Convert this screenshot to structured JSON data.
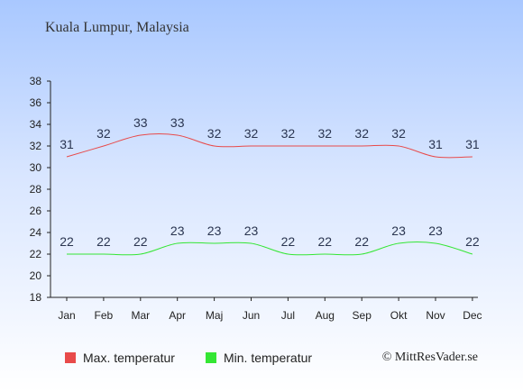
{
  "header": {
    "title": "Kuala Lumpur, Malaysia"
  },
  "credit": "© MittResVader.se",
  "colors": {
    "max": "#e84a4a",
    "min": "#34e634",
    "axis": "#222222"
  },
  "chart_data": {
    "type": "line",
    "title": "Kuala Lumpur, Malaysia",
    "categories": [
      "Jan",
      "Feb",
      "Mar",
      "Apr",
      "Maj",
      "Jun",
      "Jul",
      "Aug",
      "Sep",
      "Okt",
      "Nov",
      "Dec"
    ],
    "ylim": [
      18,
      38
    ],
    "yticks": [
      18,
      20,
      22,
      24,
      26,
      28,
      30,
      32,
      34,
      36,
      38
    ],
    "grid": false,
    "legend_position": "bottom",
    "series": [
      {
        "name": "Max. temperatur",
        "values": [
          31,
          32,
          33,
          33,
          32,
          32,
          32,
          32,
          32,
          32,
          31,
          31
        ]
      },
      {
        "name": "Min. temperatur",
        "values": [
          22,
          22,
          22,
          23,
          23,
          23,
          22,
          22,
          22,
          23,
          23,
          22
        ]
      }
    ]
  }
}
